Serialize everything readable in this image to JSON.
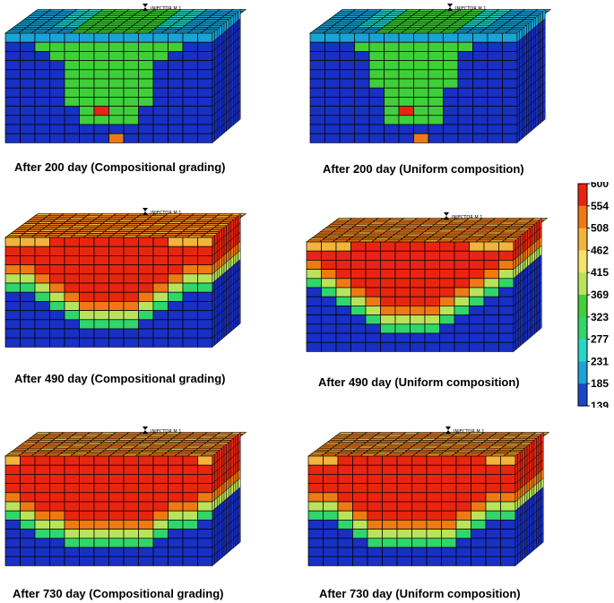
{
  "well_label": "INJECTOR M 1",
  "panels": [
    {
      "caption": "After 200 day (Compositional grading)",
      "front_levels": [
        1,
        1,
        2,
        3,
        8,
        10,
        10,
        10,
        10,
        8,
        3,
        2,
        1,
        1
      ],
      "hot_core": 9
    },
    {
      "caption": "After 200 day (Uniform composition)",
      "front_levels": [
        1,
        1,
        1,
        2,
        6,
        10,
        10,
        10,
        10,
        6,
        2,
        1,
        1,
        1
      ],
      "hot_core": 9
    },
    {
      "caption": "After 490 day (Compositional grading)",
      "front_levels": [
        4,
        4,
        5,
        6,
        7,
        8,
        8,
        8,
        8,
        7,
        6,
        5,
        4,
        4
      ],
      "hot_core": 0
    },
    {
      "caption": "After 490 day (Uniform composition)",
      "front_levels": [
        3,
        4,
        5,
        6,
        7,
        8,
        8,
        8,
        8,
        7,
        6,
        5,
        4,
        3
      ],
      "hot_core": 0
    },
    {
      "caption": "After 730 day (Compositional grading)",
      "front_levels": [
        5,
        6,
        7,
        7,
        8,
        8,
        8,
        8,
        8,
        8,
        7,
        6,
        6,
        5
      ],
      "hot_core": 0
    },
    {
      "caption": "After 730 day (Uniform composition)",
      "front_levels": [
        5,
        5,
        6,
        7,
        8,
        8,
        8,
        8,
        8,
        8,
        7,
        6,
        5,
        5
      ],
      "hot_core": 0
    }
  ],
  "colorbar": {
    "labels": [
      "600",
      "554",
      "508",
      "462",
      "415",
      "369",
      "323",
      "277",
      "231",
      "185",
      "139"
    ],
    "colors": [
      "#e8260f",
      "#ef7a13",
      "#f4b43b",
      "#f4e36a",
      "#b8e35a",
      "#3fcf39",
      "#2fd66b",
      "#26d7c8",
      "#1aa3d6",
      "#1b46c7",
      "#1830c4"
    ]
  }
}
